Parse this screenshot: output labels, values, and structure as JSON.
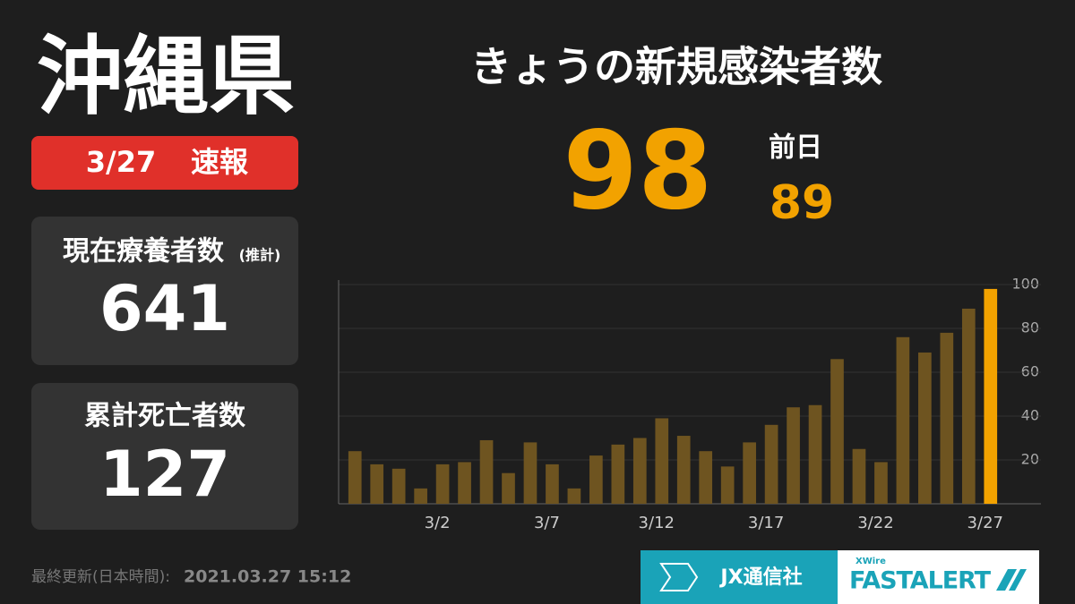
{
  "prefecture": "沖縄県",
  "badge": {
    "date": "3/27",
    "label": "速報"
  },
  "headline": "きょうの新規感染者数",
  "today": 98,
  "previous": {
    "label": "前日",
    "value": 89
  },
  "stats": [
    {
      "label": "現在療養者数",
      "note": "(推計)",
      "value": 641
    },
    {
      "label": "累計死亡者数",
      "value": 127
    }
  ],
  "footer": {
    "label": "最終更新(日本時間):",
    "timestamp": "2021.03.27 15:12"
  },
  "logos": {
    "jx": "JX通信社",
    "xwire": "XWire",
    "fastalert": "FASTALERT"
  },
  "chart_data": {
    "type": "bar",
    "categories": [
      null,
      null,
      null,
      null,
      "3/2",
      null,
      null,
      null,
      null,
      "3/7",
      null,
      null,
      null,
      null,
      "3/12",
      null,
      null,
      null,
      null,
      "3/17",
      null,
      null,
      null,
      null,
      "3/22",
      null,
      null,
      null,
      null,
      "3/27"
    ],
    "values": [
      24,
      18,
      16,
      7,
      18,
      19,
      29,
      14,
      28,
      18,
      7,
      22,
      27,
      30,
      39,
      31,
      24,
      17,
      28,
      36,
      44,
      45,
      66,
      25,
      19,
      76,
      69,
      78,
      89,
      98
    ],
    "color": "#6e5420",
    "highlight_color": "#f2a200",
    "ylim": [
      0,
      100
    ],
    "yticks": [
      20,
      40,
      60,
      80,
      100
    ],
    "grid": true
  }
}
